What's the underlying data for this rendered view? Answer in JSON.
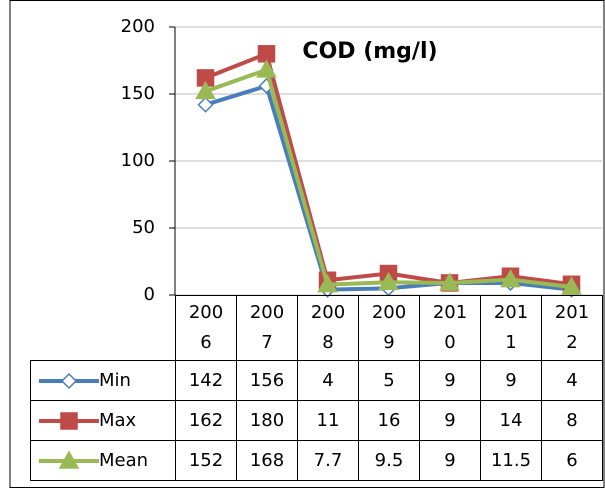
{
  "chart_data": {
    "type": "line",
    "title": "COD (mg/l)",
    "categories": [
      "2006",
      "2007",
      "2008",
      "2009",
      "2010",
      "2011",
      "2012"
    ],
    "series": [
      {
        "name": "Min",
        "color": "#4a7ebb",
        "marker": "diamond",
        "values": [
          142,
          156,
          4,
          5,
          9,
          9,
          4
        ]
      },
      {
        "name": "Max",
        "color": "#be4b48",
        "marker": "square",
        "values": [
          162,
          180,
          11,
          16,
          9,
          14,
          8
        ]
      },
      {
        "name": "Mean",
        "color": "#98b954",
        "marker": "triangle",
        "values": [
          152,
          168,
          7.7,
          9.5,
          9,
          11.5,
          6
        ]
      }
    ],
    "ylim": [
      0,
      200
    ],
    "yticks": [
      0,
      50,
      100,
      150,
      200
    ],
    "grid": true
  }
}
